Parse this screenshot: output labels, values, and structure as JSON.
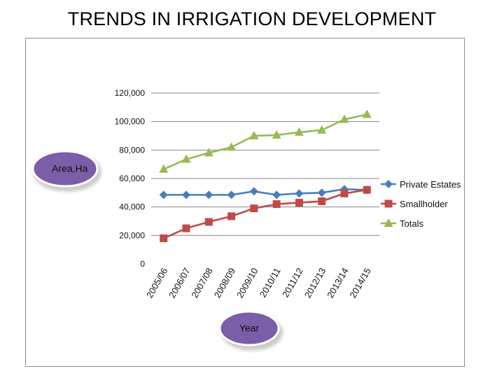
{
  "slide": {
    "title": "TRENDS IN IRRIGATION DEVELOPMENT"
  },
  "chart_data": {
    "type": "line",
    "title": "",
    "ylabel": "Area,Ha",
    "xlabel": "Year",
    "ylim": [
      0,
      120000
    ],
    "y_ticks": [
      0,
      20000,
      40000,
      60000,
      80000,
      100000,
      120000
    ],
    "y_tick_labels": [
      "0",
      "20,000",
      "40,000",
      "60,000",
      "80,000",
      "100,000",
      "120,000"
    ],
    "grid": "horizontal",
    "legend": "right",
    "categories": [
      "2005/06",
      "2006/07",
      "2007/08",
      "2008/09",
      "2009/10",
      "2010/11",
      "2011/12",
      "2012/13",
      "2013/14",
      "2014/15"
    ],
    "series": [
      {
        "name": "Private Estates",
        "marker": "diamond",
        "color": "#4a7ebb",
        "values": [
          48500,
          48500,
          48500,
          48500,
          51000,
          48500,
          49500,
          50000,
          52500,
          52000
        ]
      },
      {
        "name": "Smallholder",
        "marker": "square",
        "color": "#be4b48",
        "values": [
          18000,
          25000,
          29500,
          33500,
          39000,
          42000,
          43000,
          44000,
          49500,
          52000
        ]
      },
      {
        "name": "Totals",
        "marker": "triangle",
        "color": "#98b954",
        "values": [
          66500,
          73500,
          78000,
          82000,
          90000,
          90500,
          92500,
          94000,
          101500,
          105000
        ]
      }
    ]
  },
  "colors": {
    "callout_fill": "#7b5ea7",
    "callout_shadow": "#b3b3b3",
    "grid": "#868686",
    "frame": "#8c8c8c"
  }
}
